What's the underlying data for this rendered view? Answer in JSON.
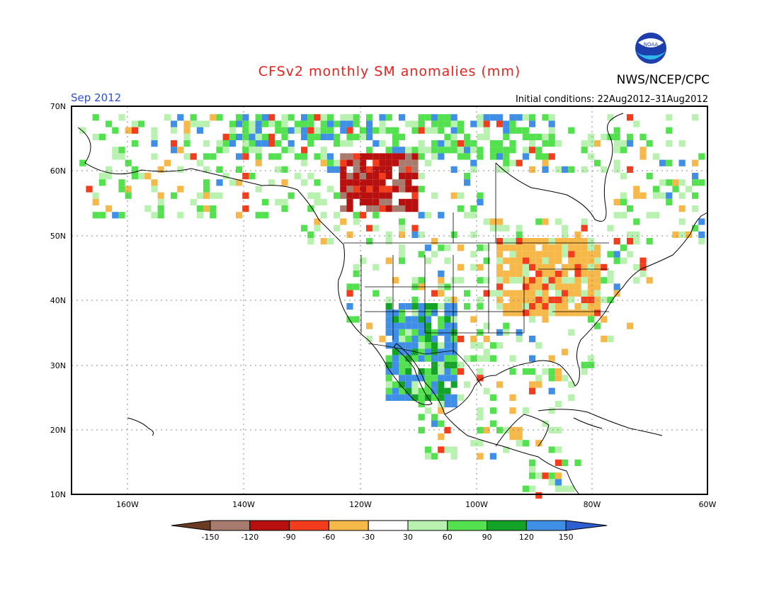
{
  "header": {
    "title": "CFSv2 monthly SM anomalies (mm)",
    "agency": "NWS/NCEP/CPC",
    "period": "Sep 2012",
    "initial_conditions": "Initial conditions: 22Aug2012–31Aug2012",
    "logo_text": "NOAA"
  },
  "map": {
    "lat_labels": [
      "70N",
      "60N",
      "50N",
      "40N",
      "30N",
      "20N",
      "10N"
    ],
    "lon_labels": [
      "160W",
      "140W",
      "120W",
      "100W",
      "80W",
      "60W"
    ]
  },
  "colorbar": {
    "labels": [
      "-150",
      "-120",
      "-90",
      "-60",
      "-30",
      "30",
      "60",
      "90",
      "120",
      "150"
    ],
    "colors": [
      "#6b3a22",
      "#a77c6f",
      "#b80f0f",
      "#f23c1c",
      "#f7b84a",
      "#ffffff",
      "#b9f2b0",
      "#53e14f",
      "#12a327",
      "#3f8fe6",
      "#2d5fd0"
    ]
  }
}
